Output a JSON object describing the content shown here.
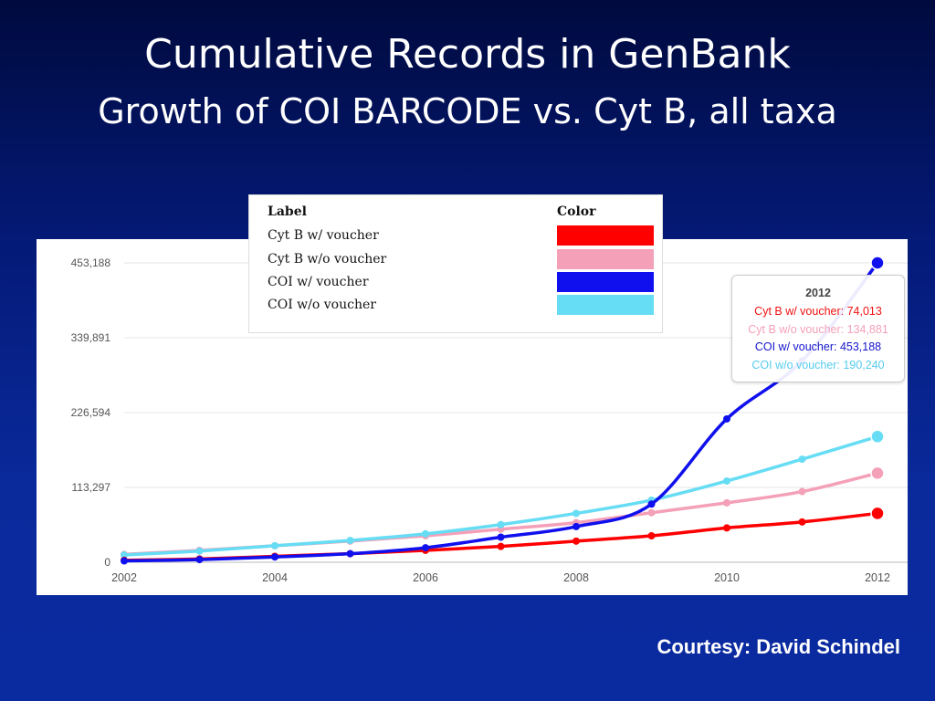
{
  "slide": {
    "title": "Cumulative Records in GenBank",
    "subtitle": "Growth of COI BARCODE vs. Cyt B, all taxa",
    "courtesy": "Courtesy: David Schindel"
  },
  "legend": {
    "label_header": "Label",
    "color_header": "Color",
    "items": [
      {
        "label": "Cyt B w/ voucher",
        "color": "#ff0000"
      },
      {
        "label": "Cyt B w/o voucher",
        "color": "#f4a0b8"
      },
      {
        "label": "COI w/ voucher",
        "color": "#1010ee"
      },
      {
        "label": "COI w/o voucher",
        "color": "#66ddf4"
      }
    ]
  },
  "tooltip": {
    "year": "2012",
    "lines": [
      {
        "text": "Cyt B w/ voucher: 74,013",
        "color": "#ee1111"
      },
      {
        "text": "Cyt B w/o voucher: 134,881",
        "color": "#f4a0b8"
      },
      {
        "text": "COI w/ voucher: 453,188",
        "color": "#1515cc"
      },
      {
        "text": "COI w/o voucher: 190,240",
        "color": "#55ccee"
      }
    ]
  },
  "chart_data": {
    "type": "line",
    "x": [
      2002,
      2003,
      2004,
      2005,
      2006,
      2007,
      2008,
      2009,
      2010,
      2011,
      2012
    ],
    "x_ticks": [
      "2002",
      "2004",
      "2006",
      "2008",
      "2010",
      "2012"
    ],
    "y_ticks": [
      "0",
      "113,297",
      "226,594",
      "339,891",
      "453,188"
    ],
    "ylim": [
      0,
      453188
    ],
    "grid": true,
    "series": [
      {
        "name": "Cyt B w/o voucher",
        "color": "#f4a0b8",
        "values": [
          12000,
          18000,
          25000,
          32000,
          40000,
          50000,
          60000,
          75000,
          90000,
          107000,
          134881
        ]
      },
      {
        "name": "COI w/o voucher",
        "color": "#66ddf4",
        "values": [
          11000,
          17000,
          25000,
          33000,
          43000,
          57000,
          74000,
          94000,
          123000,
          156000,
          190240
        ]
      },
      {
        "name": "Cyt B w/ voucher",
        "color": "#ff0000",
        "values": [
          3000,
          5000,
          9000,
          13000,
          18000,
          24000,
          32000,
          40000,
          52000,
          61000,
          74013
        ]
      },
      {
        "name": "COI w/ voucher",
        "color": "#1010ee",
        "values": [
          2000,
          4000,
          8000,
          13000,
          22000,
          38000,
          54000,
          88000,
          217000,
          305000,
          453188
        ]
      }
    ]
  }
}
